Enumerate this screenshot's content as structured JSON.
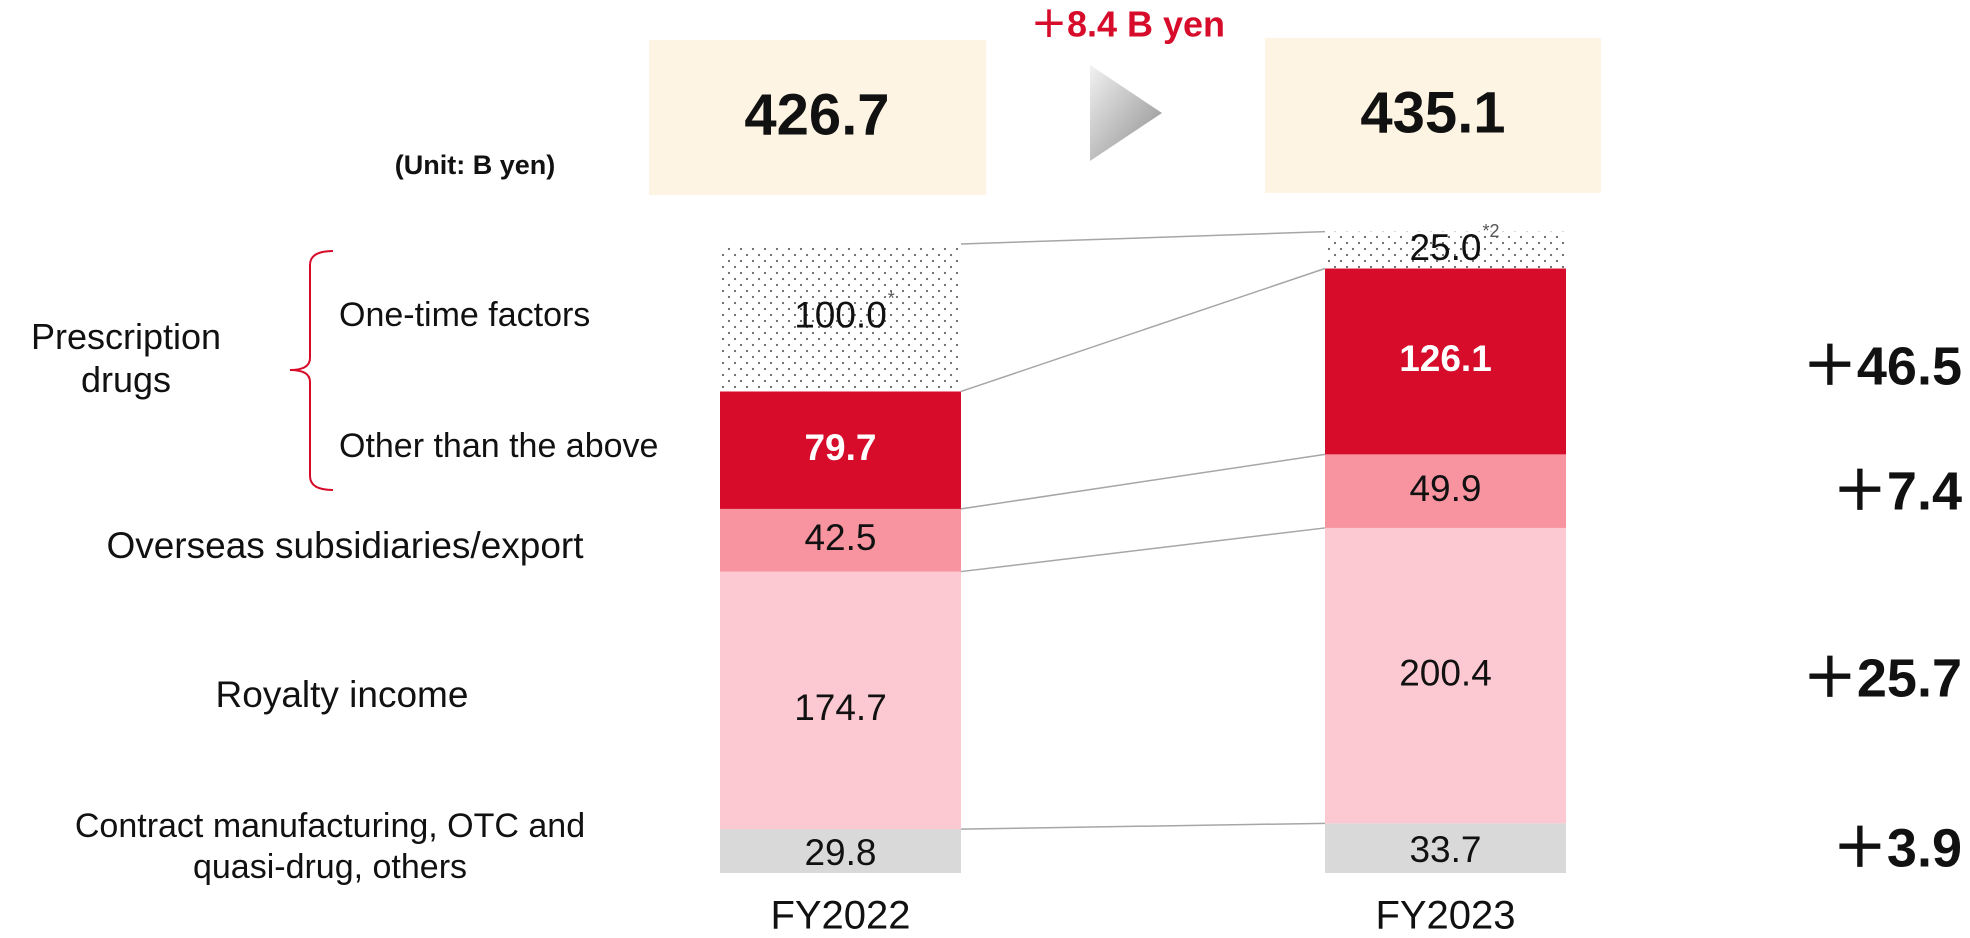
{
  "chart_data": {
    "type": "bar",
    "stacked": true,
    "unit_label": "(Unit: B yen)",
    "categories": [
      "FY2022",
      "FY2023"
    ],
    "totals": [
      426.7,
      435.1
    ],
    "change_label": "＋8.4 B yen",
    "group_label": "Prescription drugs",
    "series": [
      {
        "name": "Contract manufacturing, OTC and quasi-drug, others",
        "color": "#d9d9d9",
        "values": [
          29.8,
          33.7
        ],
        "difference": "＋3.9"
      },
      {
        "name": "Royalty income",
        "color": "#fcc9d2",
        "values": [
          174.7,
          200.4
        ],
        "difference": "＋25.7"
      },
      {
        "name": "Overseas subsidiaries/export",
        "color": "#f7949f",
        "values": [
          42.5,
          49.9
        ],
        "difference": "＋7.4"
      },
      {
        "name": "Other than the above",
        "color": "#d60c2a",
        "values": [
          79.7,
          126.1
        ],
        "difference": "＋46.5"
      },
      {
        "name": "One-time factors",
        "color": "dotted",
        "values": [
          100.0,
          25.0
        ],
        "value_labels": [
          "100.0",
          "25.0"
        ],
        "markers": [
          "*",
          "*2"
        ]
      }
    ]
  }
}
